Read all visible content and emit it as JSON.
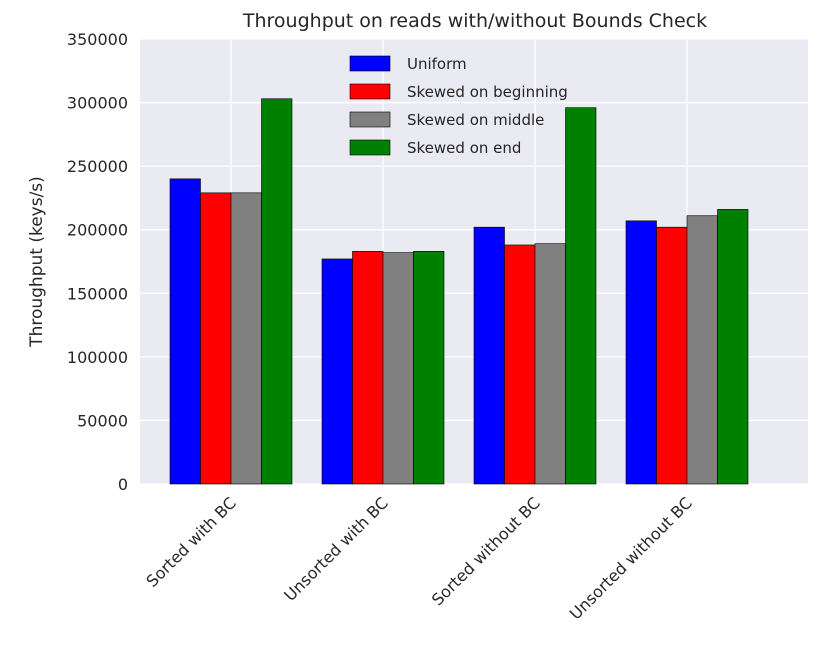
{
  "chart_data": {
    "type": "bar",
    "title": "Throughput on reads with/without Bounds Check",
    "xlabel": "",
    "ylabel": "Throughput (keys/s)",
    "categories": [
      "Sorted with BC",
      "Unsorted with BC",
      "Sorted without BC",
      "Unsorted without BC"
    ],
    "series": [
      {
        "name": "Uniform",
        "color": "#0000ff",
        "values": [
          240000,
          177000,
          202000,
          207000
        ]
      },
      {
        "name": "Skewed on beginning",
        "color": "#ff0000",
        "values": [
          229000,
          183000,
          188000,
          202000
        ]
      },
      {
        "name": "Skewed on middle",
        "color": "#808080",
        "values": [
          229000,
          182000,
          189000,
          211000
        ]
      },
      {
        "name": "Skewed on end",
        "color": "#008000",
        "values": [
          303000,
          183000,
          296000,
          216000
        ]
      }
    ],
    "ylim": [
      0,
      350000
    ],
    "yticks": [
      "0",
      "50000",
      "100000",
      "150000",
      "200000",
      "250000",
      "300000",
      "350000"
    ],
    "grid": true,
    "legend_position": "top-center",
    "background_color": "#eaeaf2"
  }
}
